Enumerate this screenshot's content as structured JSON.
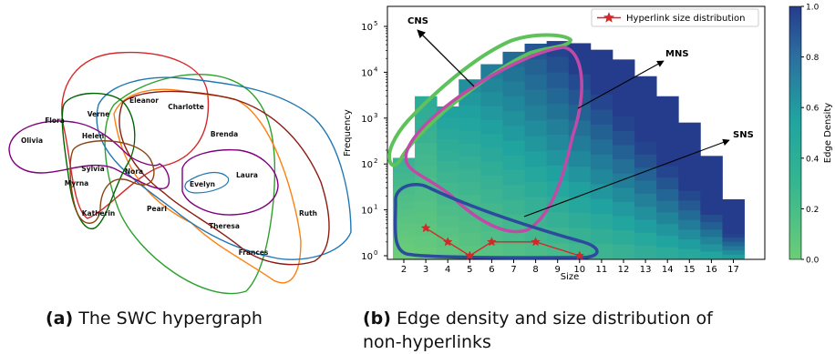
{
  "panel_a": {
    "caption_tag": "(a)",
    "caption_text": "The SWC hypergraph",
    "nodes": [
      "Olivia",
      "Flora",
      "Verne",
      "Eleanor",
      "Charlotte",
      "Helen",
      "Brenda",
      "Sylvia",
      "Nora",
      "Myrna",
      "Laura",
      "Evelyn",
      "Katherin",
      "Pearl",
      "Theresa",
      "Ruth",
      "Frances"
    ],
    "colors": [
      "#d62728",
      "#2ca02c",
      "#ff7f0e",
      "#1f77b4",
      "#8c1c13",
      "#800080",
      "#006400",
      "#8b4513"
    ]
  },
  "panel_b": {
    "caption_tag": "(b)",
    "caption_line1": "Edge density and size distribution of",
    "caption_line2": "non-hyperlinks"
  },
  "chart_data": {
    "type": "bar",
    "xlabel": "Size",
    "ylabel": "Frequency",
    "x_ticks": [
      "2",
      "3",
      "4",
      "5",
      "6",
      "7",
      "8",
      "9",
      "10",
      "11",
      "12",
      "13",
      "14",
      "15",
      "16",
      "17"
    ],
    "y_scale": "log",
    "ylim": [
      1,
      200000
    ],
    "y_ticks": [
      "10^0",
      "10^1",
      "10^2",
      "10^3",
      "10^4",
      "10^5"
    ],
    "categories": [
      2,
      3,
      4,
      5,
      6,
      7,
      8,
      9,
      10,
      11,
      12,
      13,
      14,
      15,
      16,
      17
    ],
    "values": [
      136,
      3000,
      1800,
      7000,
      15000,
      28000,
      42000,
      48000,
      43000,
      31000,
      19000,
      8200,
      3000,
      800,
      150,
      17
    ],
    "edge_density_colorbar": {
      "label": "Edge Density",
      "ticks": [
        "0.0",
        "0.2",
        "0.4",
        "0.6",
        "0.8",
        "1.0"
      ],
      "range": [
        0.0,
        1.0
      ],
      "low_color": "#6ccd78",
      "mid_color": "#20a4a0",
      "high_color": "#253c8c"
    },
    "series": [
      {
        "name": "Hyperlink size distribution",
        "color": "#d62728",
        "marker": "star",
        "x": [
          3,
          4,
          5,
          6,
          8,
          10
        ],
        "y": [
          4,
          2,
          1,
          2,
          2,
          1
        ]
      }
    ],
    "legend_position": "top-right",
    "annotations": [
      "CNS",
      "MNS",
      "SNS"
    ]
  }
}
